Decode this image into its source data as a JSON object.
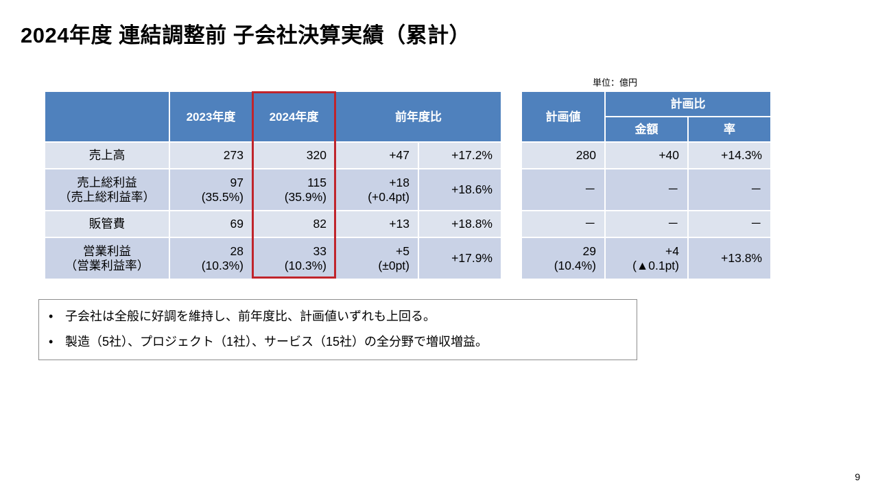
{
  "title": "2024年度 連結調整前 子会社決算実績（累計）",
  "unit_label": "単位：億円",
  "main_table": {
    "headers": {
      "fy2023": "2023年度",
      "fy2024": "2024年度",
      "yoy": "前年度比"
    },
    "rows": [
      {
        "label": "売上高",
        "sublabel": "",
        "fy2023": "273",
        "fy2023_sub": "",
        "fy2024": "320",
        "fy2024_sub": "",
        "diff": "+47",
        "diff_sub": "",
        "pct": "+17.2%"
      },
      {
        "label": "売上総利益",
        "sublabel": "（売上総利益率）",
        "fy2023": "97",
        "fy2023_sub": "(35.5%)",
        "fy2024": "115",
        "fy2024_sub": "(35.9%)",
        "diff": "+18",
        "diff_sub": "(+0.4pt)",
        "pct": "+18.6%"
      },
      {
        "label": "販管費",
        "sublabel": "",
        "fy2023": "69",
        "fy2023_sub": "",
        "fy2024": "82",
        "fy2024_sub": "",
        "diff": "+13",
        "diff_sub": "",
        "pct": "+18.8%"
      },
      {
        "label": "営業利益",
        "sublabel": "（営業利益率）",
        "fy2023": "28",
        "fy2023_sub": "(10.3%)",
        "fy2024": "33",
        "fy2024_sub": "(10.3%)",
        "diff": "+5",
        "diff_sub": "(±0pt)",
        "pct": "+17.9%"
      }
    ]
  },
  "plan_table": {
    "headers": {
      "plan_value": "計画値",
      "plan_ratio": "計画比",
      "amount": "金額",
      "rate": "率"
    },
    "rows": [
      {
        "plan": "280",
        "plan_sub": "",
        "amount": "+40",
        "amount_sub": "",
        "rate": "+14.3%"
      },
      {
        "plan": "－",
        "plan_sub": "",
        "amount": "－",
        "amount_sub": "",
        "rate": "－"
      },
      {
        "plan": "－",
        "plan_sub": "",
        "amount": "－",
        "amount_sub": "",
        "rate": "－"
      },
      {
        "plan": "29",
        "plan_sub": "(10.4%)",
        "amount": "+4",
        "amount_sub": "(▲0.1pt)",
        "rate": "+13.8%"
      }
    ]
  },
  "notes": {
    "bullet": "•",
    "items": [
      "子会社は全般に好調を維持し、前年度比、計画値いずれも上回る。",
      "製造（5社）、プロジェクト（1社）、サービス（15社）の全分野で増収増益。"
    ]
  },
  "page_number": "9",
  "colors": {
    "header_blue": "#4f81bd",
    "row_light": "#dde3ee",
    "row_dark": "#c9d2e6",
    "highlight_red": "#c0242b"
  }
}
